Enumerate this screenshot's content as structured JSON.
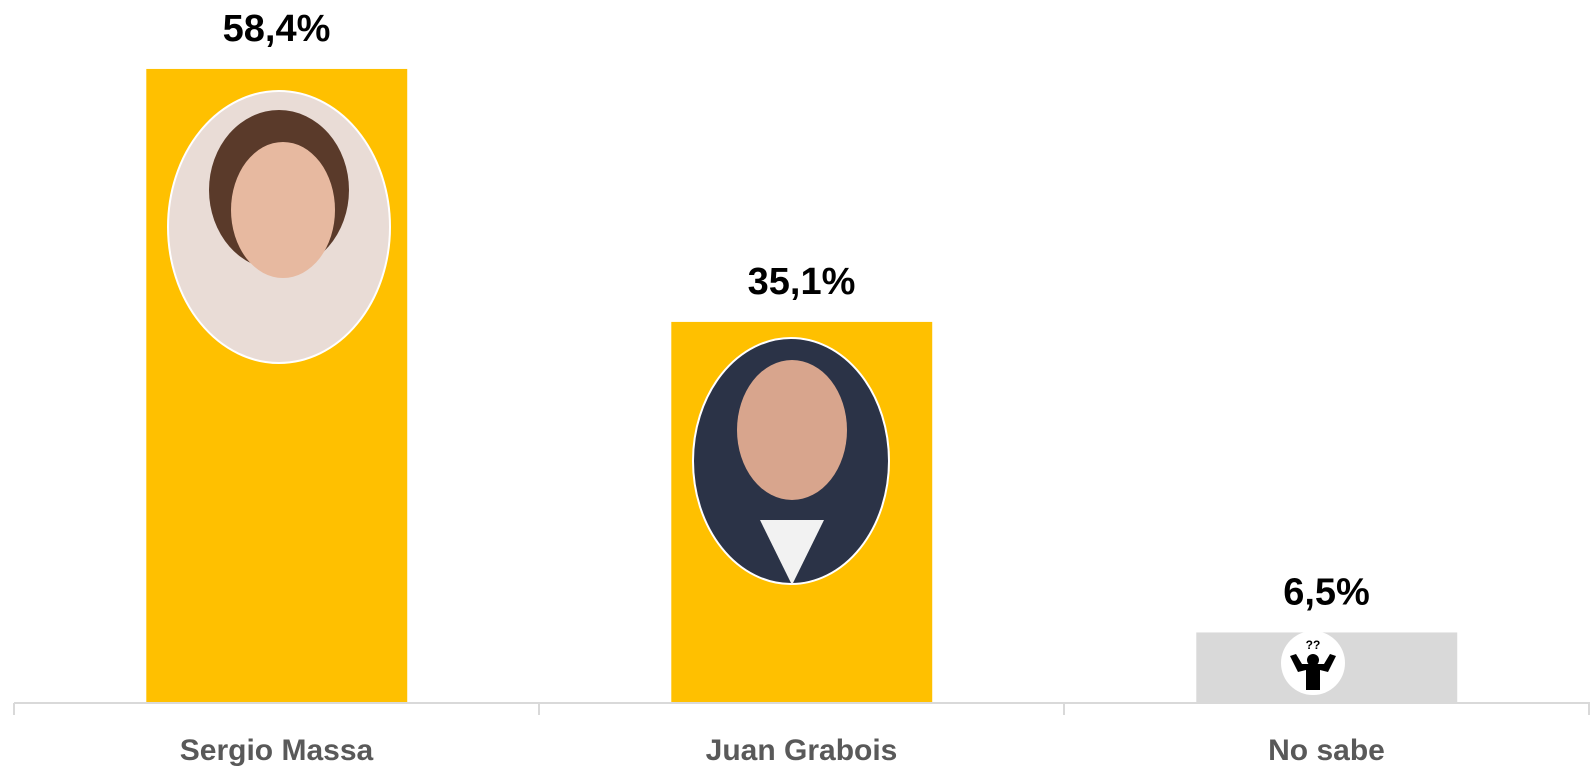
{
  "chart_data": {
    "type": "bar",
    "categories": [
      "Sergio Massa",
      "Juan Grabois",
      "No sabe"
    ],
    "values": [
      58.4,
      35.1,
      6.5
    ],
    "value_labels": [
      "58,4%",
      "35,1%",
      "6,5%"
    ],
    "colors": [
      "#FFC000",
      "#FFC000",
      "#D9D9D9"
    ],
    "ylim": [
      0,
      63
    ]
  }
}
